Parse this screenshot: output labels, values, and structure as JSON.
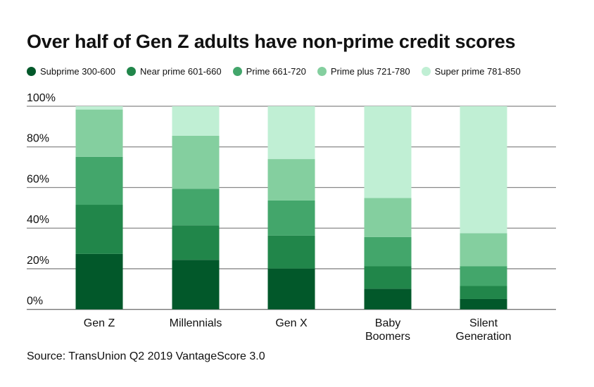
{
  "chart_data": {
    "type": "bar",
    "stacked": true,
    "title": "Over half of Gen Z adults have non-prime credit scores",
    "categories": [
      "Gen Z",
      "Millennials",
      "Gen X",
      "Baby Boomers",
      "Silent Generation"
    ],
    "category_lines": [
      [
        "Gen Z"
      ],
      [
        "Millennials"
      ],
      [
        "Gen X"
      ],
      [
        "Baby",
        "Boomers"
      ],
      [
        "Silent",
        "Generation"
      ]
    ],
    "series": [
      {
        "name": "Subprime 300-600",
        "color": "#02582a",
        "values": [
          27.3,
          24.4,
          20.1,
          10.2,
          5.1
        ]
      },
      {
        "name": "Near prime 601-660",
        "color": "#21864a",
        "values": [
          24.2,
          17.0,
          16.2,
          11.0,
          6.4
        ]
      },
      {
        "name": "Prime 661-720",
        "color": "#43a66b",
        "values": [
          23.6,
          18.0,
          17.3,
          14.4,
          9.7
        ]
      },
      {
        "name": "Prime plus 721-780",
        "color": "#84cf9f",
        "values": [
          23.3,
          26.1,
          20.4,
          19.2,
          16.3
        ]
      },
      {
        "name": "Super prime 781-850",
        "color": "#c0efd4",
        "values": [
          1.6,
          14.5,
          26.0,
          45.2,
          62.5
        ]
      }
    ],
    "ylim": [
      0,
      100
    ],
    "yticks": [
      "0%",
      "20%",
      "40%",
      "60%",
      "80%",
      "100%"
    ],
    "grid": true,
    "legend": "top",
    "xlabel": "",
    "ylabel": ""
  },
  "source": "Source: TransUnion Q2 2019 VantageScore 3.0"
}
